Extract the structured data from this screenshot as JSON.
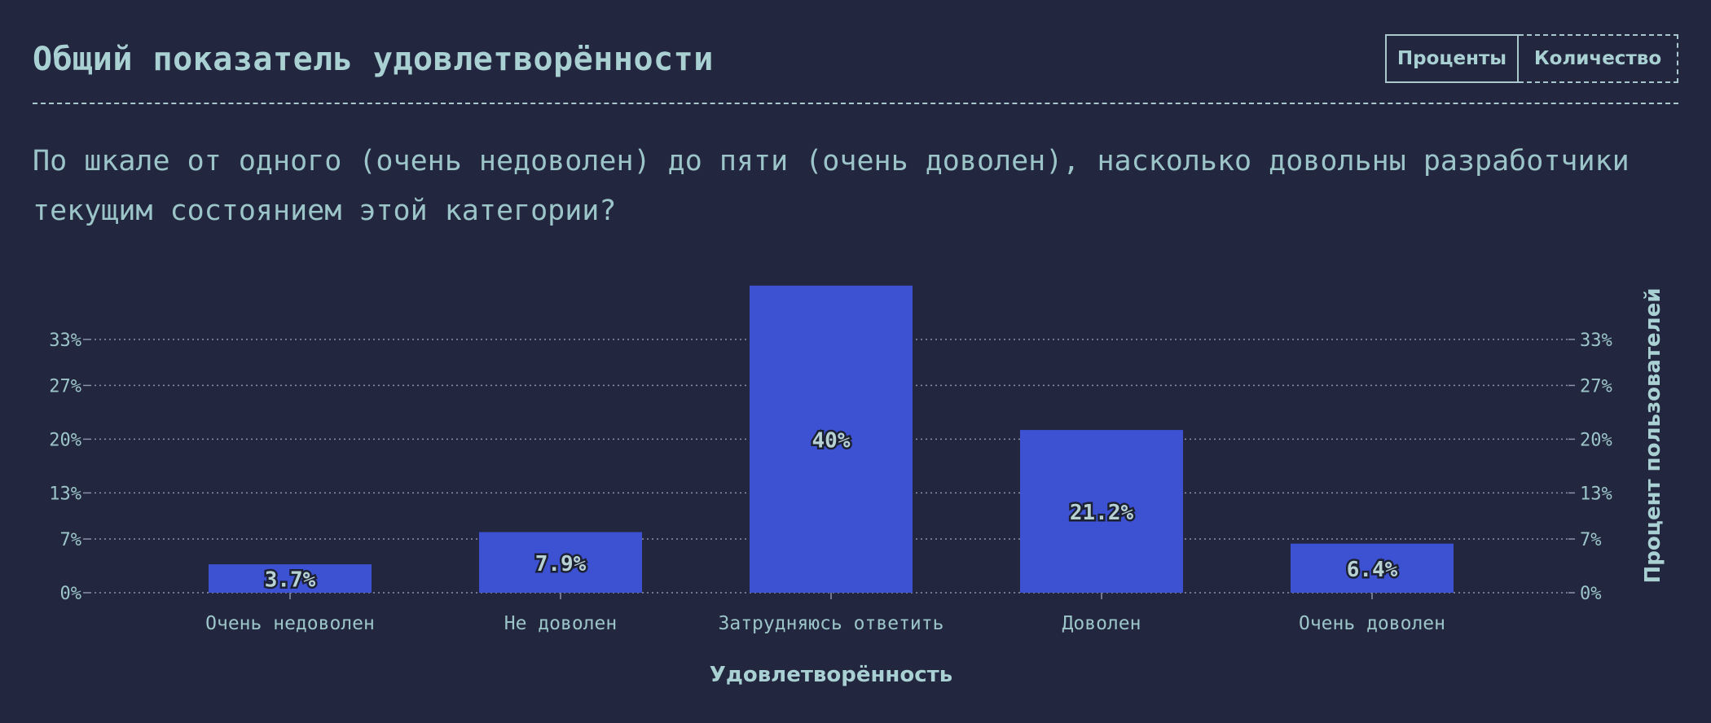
{
  "header": {
    "title": "Общий показатель удовлетворённости",
    "toggle": {
      "percent_label": "Проценты",
      "count_label": "Количество"
    }
  },
  "question": "По шкале от одного (очень недоволен) до пяти (очень доволен), насколько довольны разработчики текущим состоянием этой категории?",
  "colors": {
    "background": "#22263e",
    "bar": "#3d51d3",
    "text": "#9cc5c9",
    "grid": "#8a94a8"
  },
  "chart_data": {
    "type": "bar",
    "categories": [
      "Очень недоволен",
      "Не доволен",
      "Затрудняюсь ответить",
      "Доволен",
      "Очень доволен"
    ],
    "values": [
      3.7,
      7.9,
      40,
      21.2,
      6.4
    ],
    "value_labels": [
      "3.7%",
      "7.9%",
      "40%",
      "21.2%",
      "6.4%"
    ],
    "xlabel": "Удовлетворённость",
    "ylabel": "Процент пользователей",
    "yticks": [
      0,
      7,
      13,
      20,
      27,
      33
    ],
    "ytick_labels": [
      "0%",
      "7%",
      "13%",
      "20%",
      "27%",
      "33%"
    ],
    "ylim": [
      0,
      33.3
    ],
    "grid": true,
    "right_axis": true
  }
}
